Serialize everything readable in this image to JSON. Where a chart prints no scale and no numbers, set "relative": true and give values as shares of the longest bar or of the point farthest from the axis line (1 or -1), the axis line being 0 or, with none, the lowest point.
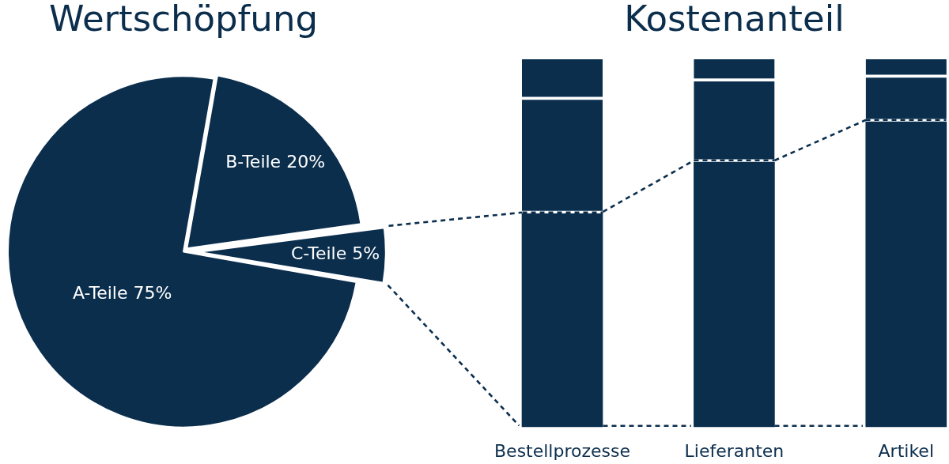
{
  "chart_data": [
    {
      "type": "pie",
      "title": "Wertschöpfung",
      "categories": [
        "A-Teile",
        "B-Teile",
        "C-Teile"
      ],
      "values": [
        75,
        20,
        5
      ],
      "colors": [
        "#0b2e4d",
        "#0b2e4d",
        "#0b2e4d"
      ],
      "value_labels": [
        "75%",
        "20%",
        "5%"
      ]
    },
    {
      "type": "bar",
      "title": "Kostenanteil",
      "categories": [
        "Bestellprozesse",
        "Lieferanten",
        "Artikel"
      ],
      "stacked": true,
      "relative": true,
      "series": [
        {
          "color": "#0b2e4d",
          "values": [
            0.58,
            0.72,
            0.83
          ]
        },
        {
          "color": "#0b2e4d",
          "values": [
            0.31,
            0.22,
            0.12
          ]
        },
        {
          "color": "#0b2e4d",
          "values": [
            0.11,
            0.06,
            0.05
          ]
        }
      ]
    }
  ]
}
